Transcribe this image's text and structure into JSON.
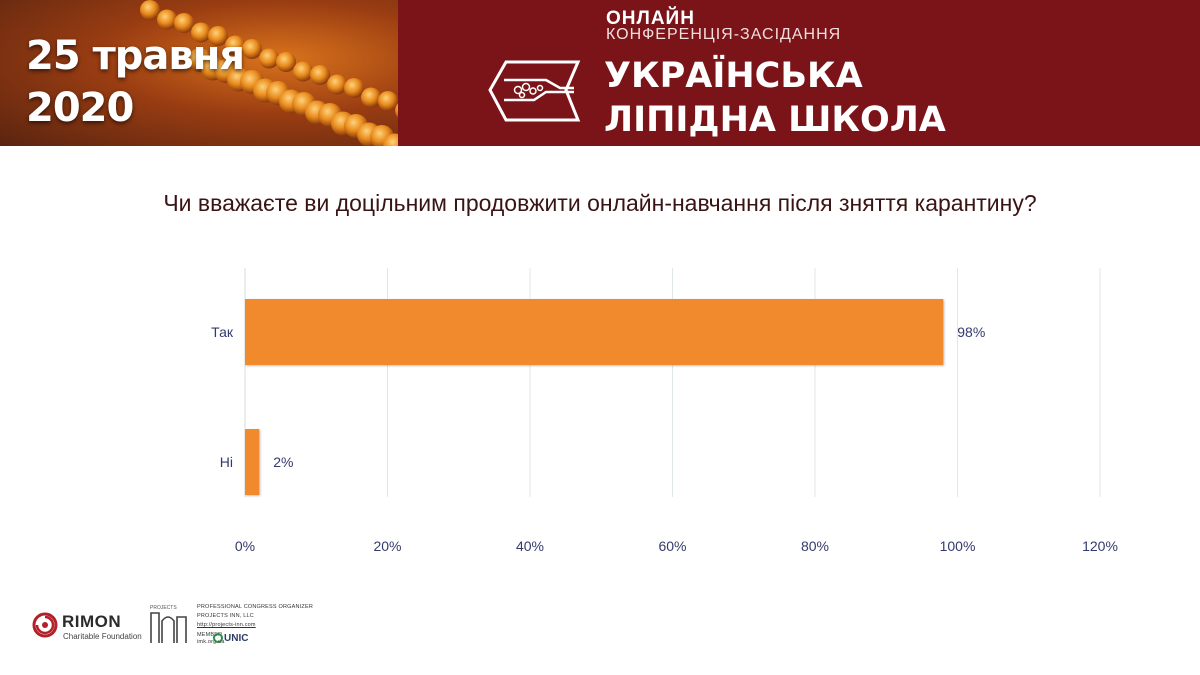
{
  "header": {
    "date_line1": "25 травня",
    "date_line2": "2020",
    "kicker_line1": "ОНЛАЙН",
    "kicker_line2": "КОНФЕРЕНЦІЯ-ЗАСІДАННЯ",
    "title_line1": "УКРАЇНСЬКА",
    "title_line2": "ЛІПІДНА ШКОЛА",
    "brand_color": "#7a1418"
  },
  "question": "Чи вважаєте ви доцільним продовжити онлайн-навчання після зняття карантину?",
  "chart_data": {
    "type": "bar",
    "orientation": "horizontal",
    "categories": [
      "Так",
      "Ні"
    ],
    "values": [
      98,
      2
    ],
    "data_labels": [
      "98%",
      "2%"
    ],
    "x_ticks": [
      "0%",
      "20%",
      "40%",
      "60%",
      "80%",
      "100%",
      "120%"
    ],
    "xlim": [
      0,
      120
    ],
    "grid": "vertical",
    "bar_color": "#f08a2c",
    "title": "",
    "xlabel": "",
    "ylabel": ""
  },
  "footer": {
    "rimon_name": "RIMON",
    "rimon_sub": "Charitable Foundation",
    "pi_line1": "PROFESSIONAL CONGRESS ORGANIZER",
    "pi_line2": "PROJECTS INN, LLC",
    "pi_line3": "http://projects-inn.com",
    "pi_line4": "MEMBER",
    "pi_line5": "imk.org.ua",
    "unic": "UNIC",
    "projects_small": "PROJECTS"
  }
}
